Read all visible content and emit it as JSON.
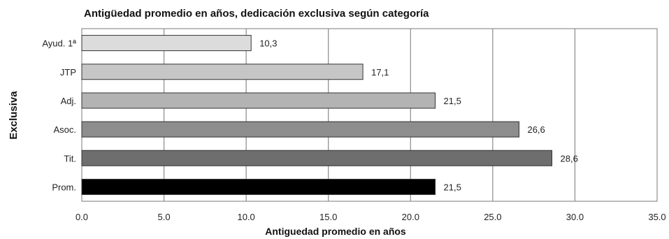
{
  "chart_data": {
    "type": "bar",
    "orientation": "horizontal",
    "title": "Antigüedad promedio en años, dedicación exclusiva según categoría",
    "xlabel": "Antiguedad promedio en años",
    "ylabel": "Exclusiva",
    "categories": [
      "Ayud. 1ª",
      "JTP",
      "Adj.",
      "Asoc.",
      "Tit.",
      "Prom."
    ],
    "values": [
      10.3,
      17.1,
      21.5,
      26.6,
      28.6,
      21.5
    ],
    "value_labels": [
      "10,3",
      "17,1",
      "21,5",
      "26,6",
      "28,6",
      "21,5"
    ],
    "colors": [
      "#dcdcdc",
      "#c6c6c6",
      "#b3b3b3",
      "#8d8d8d",
      "#6e6e6e",
      "#000000"
    ],
    "xlim": [
      0,
      35
    ],
    "xticks": [
      0,
      5,
      10,
      15,
      20,
      25,
      30,
      35
    ],
    "xtick_labels": [
      "0.0",
      "5.0",
      "10.0",
      "15.0",
      "20.0",
      "25.0",
      "30.0",
      "35.0"
    ],
    "grid": true,
    "legend": "none"
  }
}
